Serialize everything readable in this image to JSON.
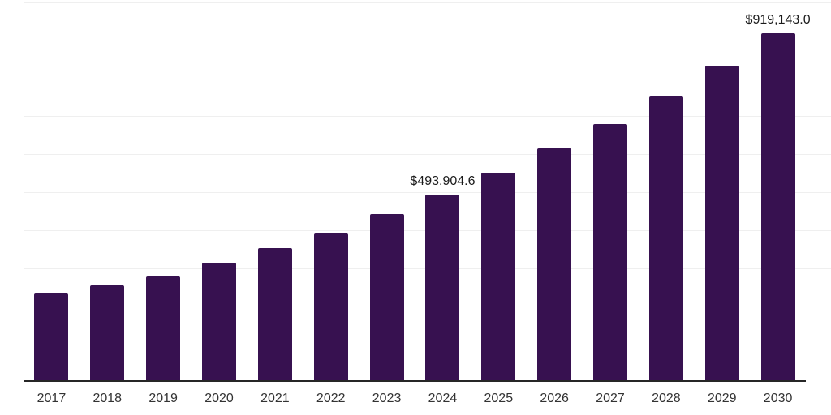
{
  "chart_data": {
    "type": "bar",
    "title": "",
    "xlabel": "",
    "ylabel": "",
    "categories": [
      "2017",
      "2018",
      "2019",
      "2020",
      "2021",
      "2022",
      "2023",
      "2024",
      "2025",
      "2026",
      "2027",
      "2028",
      "2029",
      "2030"
    ],
    "values": [
      232000,
      254000,
      278000,
      314000,
      353000,
      392000,
      443000,
      493904.6,
      551000,
      615000,
      680000,
      753000,
      833000,
      919143.0
    ],
    "annotations": [
      {
        "category": "2024",
        "text": "$493,904.6"
      },
      {
        "category": "2030",
        "text": "$919,143.0"
      }
    ],
    "ylim": [
      0,
      1000000
    ],
    "gridline_step": 100000,
    "grid": "horizontal, light, no y-axis tick labels",
    "legend_position": "none",
    "colors": {
      "bar": "#371150",
      "gridline": "#efefef",
      "axis": "#262626",
      "data_label": "#1a1a1a",
      "tick_label": "#333333",
      "background": "#ffffff"
    }
  }
}
